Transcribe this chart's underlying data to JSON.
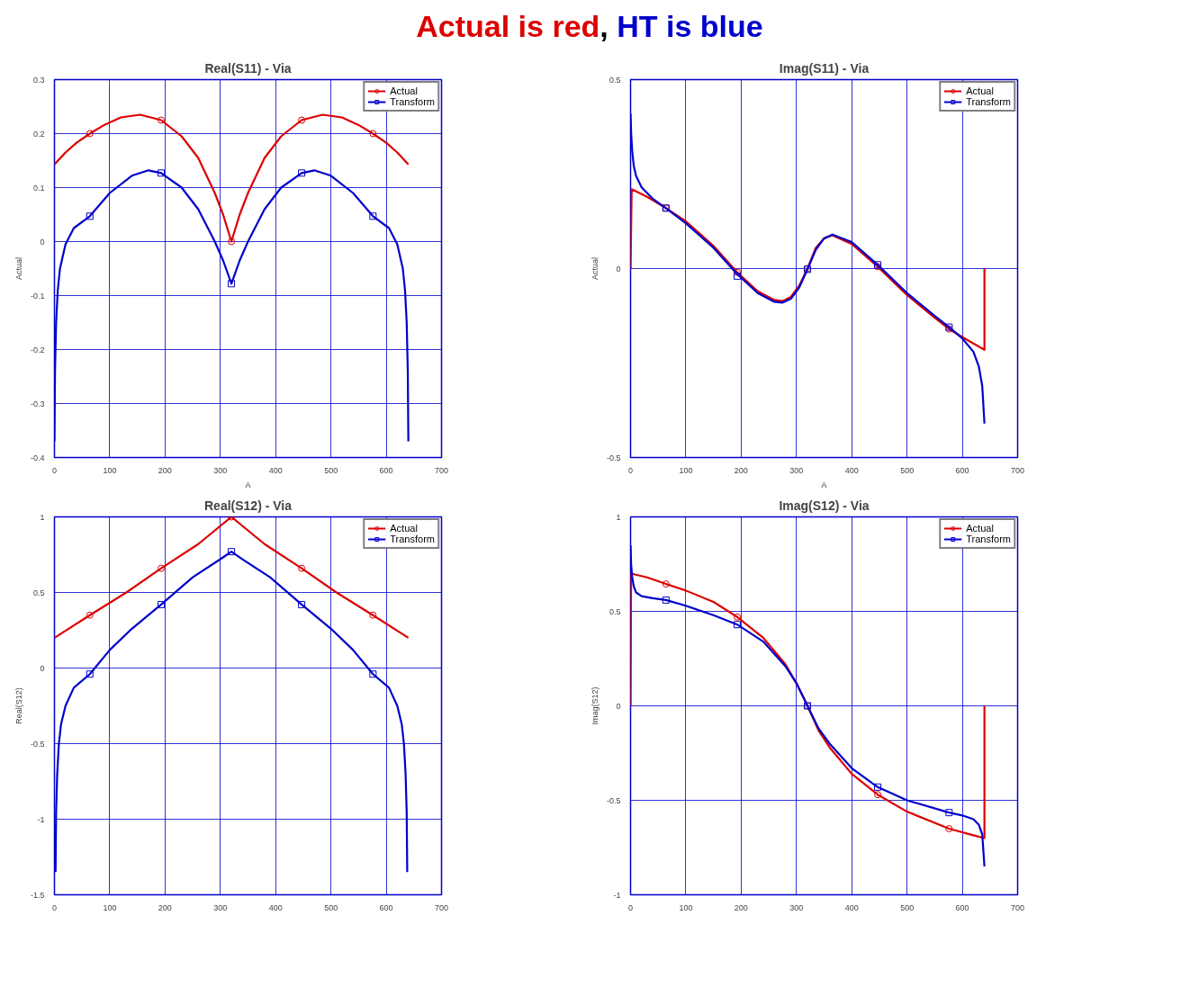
{
  "chart_data": [
    {
      "type": "line",
      "title": "Real(S11) - Via",
      "xlabel": "A",
      "ylabel": "Actual",
      "annotations": [
        "Actual is red, HT is blue"
      ],
      "xlim": [
        0,
        700
      ],
      "ylim": [
        -0.4,
        0.3
      ],
      "xticks": [
        0,
        100,
        200,
        300,
        400,
        500,
        600,
        700
      ],
      "yticks": [
        -0.4,
        -0.3,
        -0.2,
        -0.1,
        0,
        0.1,
        0.2,
        0.3
      ],
      "grid": true,
      "legend": "top right",
      "line_style": "solid",
      "series": [
        {
          "name": "Actual",
          "color": "#dd0000",
          "x": [
            0,
            20,
            40,
            64,
            90,
            120,
            155,
            193,
            230,
            260,
            290,
            305,
            320,
            335,
            350,
            380,
            410,
            447,
            485,
            520,
            550,
            576,
            600,
            620,
            640
          ],
          "values": [
            0.143,
            0.165,
            0.183,
            0.2,
            0.216,
            0.23,
            0.235,
            0.225,
            0.195,
            0.155,
            0.09,
            0.05,
            0.0,
            0.05,
            0.09,
            0.155,
            0.195,
            0.225,
            0.235,
            0.23,
            0.216,
            0.2,
            0.183,
            0.165,
            0.143
          ]
        },
        {
          "type": "scatter",
          "marker": "circle",
          "color": "#dd0000",
          "x": [
            64,
            193,
            320,
            447,
            576
          ],
          "values": [
            0.2,
            0.225,
            0,
            0.225,
            0.2
          ]
        },
        {
          "name": "Transform",
          "color": "#0000cc",
          "x": [
            0,
            1,
            3,
            6,
            10,
            20,
            35,
            64,
            100,
            140,
            170,
            193,
            230,
            260,
            290,
            305,
            320,
            335,
            350,
            380,
            410,
            447,
            470,
            500,
            540,
            576,
            605,
            620,
            630,
            634,
            637,
            639,
            640
          ],
          "values": [
            -0.37,
            -0.24,
            -0.15,
            -0.09,
            -0.05,
            -0.005,
            0.025,
            0.047,
            0.09,
            0.122,
            0.132,
            0.127,
            0.1,
            0.06,
            0.0,
            -0.035,
            -0.078,
            -0.035,
            0.0,
            0.06,
            0.1,
            0.127,
            0.132,
            0.122,
            0.09,
            0.047,
            0.025,
            -0.005,
            -0.05,
            -0.09,
            -0.15,
            -0.24,
            -0.37
          ]
        },
        {
          "type": "scatter",
          "marker": "square",
          "color": "#0000cc",
          "x": [
            64,
            193,
            320,
            447,
            576
          ],
          "values": [
            0.047,
            0.127,
            -0.078,
            0.127,
            0.047
          ]
        }
      ]
    },
    {
      "type": "line",
      "title": "Imag(S11) - Via",
      "xlabel": "A",
      "ylabel": "Actual",
      "xlim": [
        0,
        700
      ],
      "ylim": [
        -0.5,
        0.5
      ],
      "xticks": [
        0,
        100,
        200,
        300,
        400,
        500,
        600,
        700
      ],
      "yticks": [
        -0.5,
        0,
        0.5
      ],
      "grid": true,
      "legend": "top right",
      "line_style": "solid",
      "series": [
        {
          "name": "Actual",
          "color": "#dd0000",
          "x": [
            0,
            2,
            30,
            64,
            100,
            150,
            193,
            230,
            260,
            275,
            290,
            305,
            320,
            335,
            350,
            365,
            400,
            447,
            500,
            550,
            576,
            610,
            640,
            640
          ],
          "values": [
            0,
            0.21,
            0.19,
            0.16,
            0.125,
            0.06,
            -0.01,
            -0.06,
            -0.083,
            -0.086,
            -0.075,
            -0.045,
            0,
            0.055,
            0.08,
            0.088,
            0.065,
            0.005,
            -0.07,
            -0.13,
            -0.16,
            -0.19,
            -0.215,
            0
          ]
        },
        {
          "type": "scatter",
          "marker": "circle",
          "color": "#dd0000",
          "x": [
            64,
            193,
            320,
            447,
            576
          ],
          "values": [
            0.16,
            -0.01,
            0,
            0.005,
            -0.16
          ]
        },
        {
          "name": "Transform",
          "color": "#0000cc",
          "x": [
            0,
            1,
            3,
            6,
            10,
            20,
            40,
            64,
            100,
            150,
            193,
            230,
            260,
            275,
            290,
            305,
            320,
            335,
            350,
            365,
            400,
            447,
            500,
            550,
            576,
            600,
            620,
            630,
            636,
            640
          ],
          "values": [
            0.41,
            0.36,
            0.31,
            0.27,
            0.245,
            0.215,
            0.185,
            0.16,
            0.12,
            0.055,
            -0.015,
            -0.065,
            -0.088,
            -0.09,
            -0.08,
            -0.05,
            -0.002,
            0.05,
            0.08,
            0.09,
            0.07,
            0.01,
            -0.065,
            -0.125,
            -0.155,
            -0.185,
            -0.22,
            -0.26,
            -0.31,
            -0.41
          ]
        },
        {
          "type": "scatter",
          "marker": "square",
          "color": "#0000cc",
          "x": [
            64,
            193,
            320,
            447,
            576
          ],
          "values": [
            0.16,
            -0.02,
            -0.002,
            0.01,
            -0.155
          ]
        }
      ]
    },
    {
      "type": "line",
      "title": "Real(S12) - Via",
      "ylabel": "Real(S12)",
      "xlim": [
        0,
        700
      ],
      "ylim": [
        -1.5,
        1
      ],
      "xticks": [
        0,
        100,
        200,
        300,
        400,
        500,
        600,
        700
      ],
      "yticks": [
        -1.5,
        -1,
        -0.5,
        0,
        0.5,
        1
      ],
      "grid": true,
      "legend": "top right",
      "line_style": "solid",
      "series": [
        {
          "name": "Actual",
          "color": "#dd0000",
          "x": [
            0,
            64,
            130,
            193,
            260,
            320,
            380,
            447,
            510,
            576,
            640
          ],
          "values": [
            0.2,
            0.35,
            0.5,
            0.66,
            0.82,
            1.0,
            0.82,
            0.66,
            0.5,
            0.35,
            0.2
          ]
        },
        {
          "type": "scatter",
          "marker": "circle",
          "color": "#dd0000",
          "x": [
            64,
            193,
            320,
            447,
            576
          ],
          "values": [
            0.35,
            0.66,
            1,
            0.66,
            0.35
          ]
        },
        {
          "name": "Transform",
          "color": "#0000cc",
          "x": [
            2,
            3,
            5,
            8,
            12,
            20,
            35,
            64,
            100,
            140,
            193,
            250,
            300,
            320,
            340,
            390,
            447,
            500,
            540,
            576,
            605,
            620,
            628,
            632,
            635,
            637,
            638
          ],
          "values": [
            -1.35,
            -0.95,
            -0.7,
            -0.5,
            -0.37,
            -0.25,
            -0.13,
            -0.04,
            0.12,
            0.26,
            0.42,
            0.6,
            0.72,
            0.77,
            0.72,
            0.6,
            0.42,
            0.26,
            0.12,
            -0.04,
            -0.13,
            -0.25,
            -0.37,
            -0.5,
            -0.7,
            -0.95,
            -1.35
          ]
        },
        {
          "type": "scatter",
          "marker": "square",
          "color": "#0000cc",
          "x": [
            64,
            193,
            320,
            447,
            576
          ],
          "values": [
            -0.04,
            0.42,
            0.77,
            0.42,
            -0.04
          ]
        }
      ]
    },
    {
      "type": "line",
      "title": "Imag(S12) - Via",
      "ylabel": "Imag(S12)",
      "xlim": [
        0,
        700
      ],
      "ylim": [
        -1,
        1
      ],
      "xticks": [
        0,
        100,
        200,
        300,
        400,
        500,
        600,
        700
      ],
      "yticks": [
        -1,
        -0.5,
        0,
        0.5,
        1
      ],
      "grid": true,
      "legend": "top right",
      "line_style": "solid",
      "series": [
        {
          "name": "Actual",
          "color": "#dd0000",
          "x": [
            0,
            1,
            30,
            64,
            100,
            150,
            193,
            240,
            280,
            300,
            320,
            340,
            360,
            400,
            447,
            500,
            576,
            620,
            640,
            640
          ],
          "values": [
            0,
            0.7,
            0.68,
            0.645,
            0.61,
            0.55,
            0.47,
            0.36,
            0.22,
            0.12,
            0,
            -0.13,
            -0.22,
            -0.36,
            -0.47,
            -0.56,
            -0.65,
            -0.685,
            -0.7,
            0
          ]
        },
        {
          "type": "scatter",
          "marker": "circle",
          "color": "#dd0000",
          "x": [
            64,
            193,
            320,
            447,
            576
          ],
          "values": [
            0.645,
            0.47,
            0,
            -0.47,
            -0.65
          ]
        },
        {
          "name": "Transform",
          "color": "#0000cc",
          "x": [
            0,
            1,
            3,
            6,
            10,
            20,
            40,
            64,
            100,
            150,
            193,
            240,
            280,
            300,
            320,
            340,
            360,
            400,
            447,
            500,
            576,
            600,
            620,
            630,
            636,
            640
          ],
          "values": [
            0.85,
            0.75,
            0.68,
            0.63,
            0.6,
            0.58,
            0.57,
            0.56,
            0.53,
            0.48,
            0.43,
            0.34,
            0.21,
            0.12,
            0,
            -0.12,
            -0.2,
            -0.33,
            -0.43,
            -0.5,
            -0.565,
            -0.58,
            -0.6,
            -0.63,
            -0.68,
            -0.85
          ]
        },
        {
          "type": "scatter",
          "marker": "square",
          "color": "#0000cc",
          "x": [
            64,
            193,
            320,
            447,
            576
          ],
          "values": [
            0.56,
            0.43,
            0,
            -0.43,
            -0.565
          ]
        }
      ]
    }
  ]
}
